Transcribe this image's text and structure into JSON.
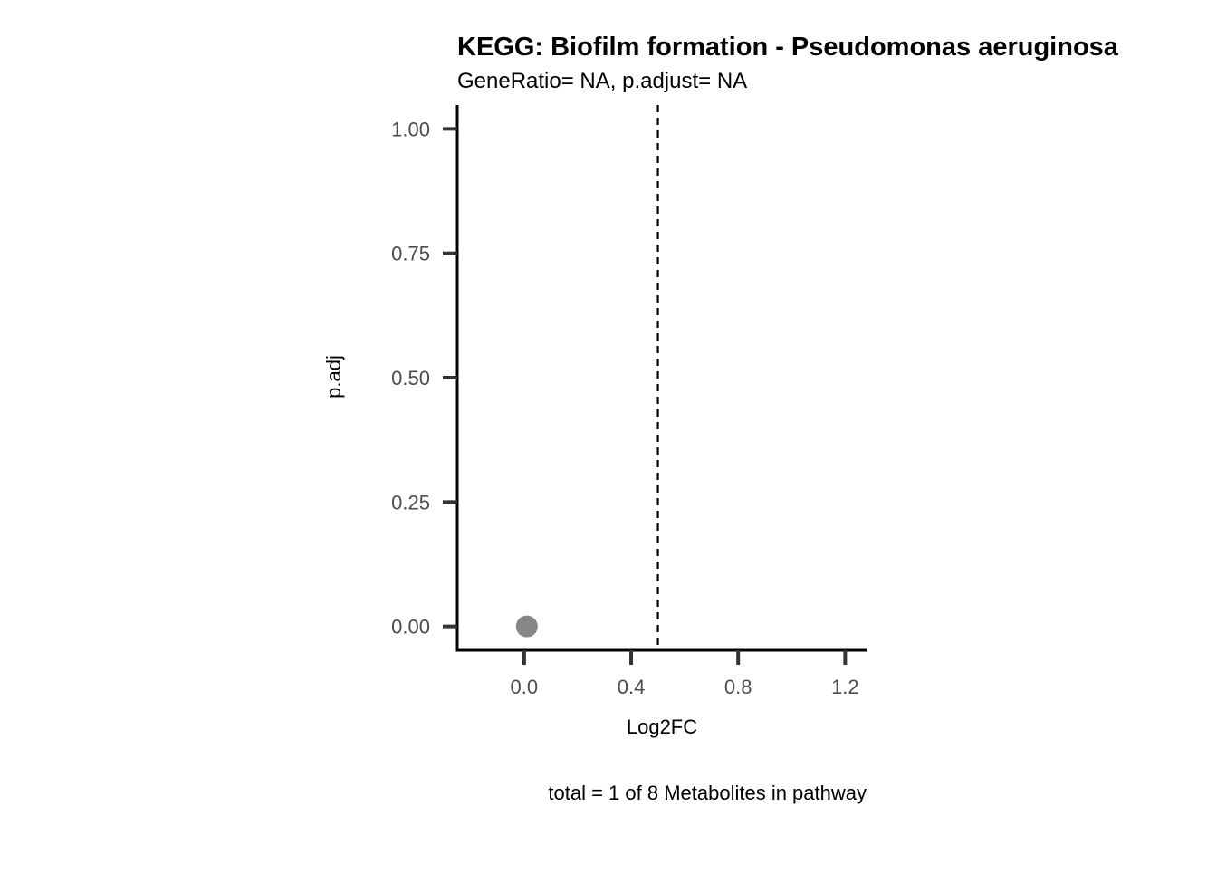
{
  "chart_data": {
    "type": "scatter",
    "title": "KEGG: Biofilm formation - Pseudomonas aeruginosa",
    "subtitle": "GeneRatio= NA, p.adjust= NA",
    "xlabel": "Log2FC",
    "ylabel": "p.adj",
    "caption": "total = 1 of 8 Metabolites in pathway",
    "xlim": [
      -0.25,
      1.28
    ],
    "ylim": [
      -0.048,
      1.048
    ],
    "x_ticks": [
      0.0,
      0.4,
      0.8,
      1.2
    ],
    "x_tick_labels": [
      "0.0",
      "0.4",
      "0.8",
      "1.2"
    ],
    "y_ticks": [
      0.0,
      0.25,
      0.5,
      0.75,
      1.0
    ],
    "y_tick_labels": [
      "0.00",
      "0.25",
      "0.50",
      "0.75",
      "1.00"
    ],
    "reference_line": {
      "orientation": "vertical",
      "x": 0.5,
      "style": "dashed"
    },
    "points": [
      {
        "x": 0.01,
        "y": 0.0
      }
    ],
    "grid": false,
    "legend": "none",
    "point_color": "#878787",
    "axis_color": "#000000",
    "tick_color": "#333333",
    "tick_label_color": "#4d4d4d"
  }
}
